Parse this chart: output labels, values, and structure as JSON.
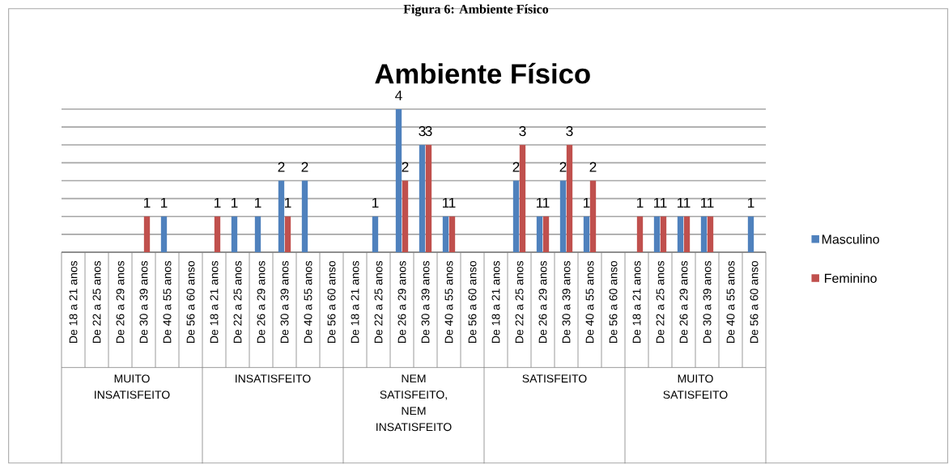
{
  "chart_data": {
    "type": "bar",
    "title": "Ambiente Físico",
    "annotations": [
      "Figura 6: Ambiente Físico",
      "MUITO INSATISFEITO",
      "INSATISFEITO",
      "NEM SATISFEITO, NEM INSATISFEITO",
      "SATISFEITO",
      "MUITO SATISFEITO"
    ],
    "categories": [
      "De 18 a 21 anos",
      "De 22 a 25 anos",
      "De 26 a 29 anos",
      "De 30 a 39 anos",
      "De 40 a 55 anos",
      "De 56 a 60 anso",
      "De 18 a 21 anos",
      "De 22 a 25 anos",
      "De 26 a 29 anos",
      "De 30 a 39 anos",
      "De 40 a 55 anos",
      "De 56 a 60 anso",
      "De 18 a 21 anos",
      "De 22 a 25 anos",
      "De 26 a 29 anos",
      "De 30 a 39 anos",
      "De 40 a 55 anos",
      "De 56 a 60 anso",
      "De 18 a 21 anos",
      "De 22 a 25 anos",
      "De 26 a 29 anos",
      "De 30 a 39 anos",
      "De 40 a 55 anos",
      "De 56 a 60 anso",
      "De 18 a 21 anos",
      "De 22 a 25 anos",
      "De 26 a 29 anos",
      "De 30 a 39 anos",
      "De 40 a 55 anos",
      "De 56 a 60 anso"
    ],
    "series": [
      {
        "name": "Masculino",
        "color": "#4f81bd",
        "values": [
          0,
          0,
          0,
          0,
          1,
          0,
          0,
          1,
          1,
          2,
          2,
          0,
          0,
          1,
          4,
          3,
          1,
          0,
          0,
          2,
          1,
          2,
          1,
          0,
          0,
          1,
          1,
          1,
          0,
          1
        ],
        "value_labels": [
          null,
          null,
          null,
          null,
          "1",
          null,
          null,
          "1",
          "1",
          "2",
          "2",
          null,
          null,
          "1",
          "4",
          "3",
          "1",
          null,
          null,
          "2",
          "1",
          "2",
          "1",
          null,
          null,
          "1",
          "1",
          "1",
          null,
          "1"
        ]
      },
      {
        "name": "Feminino",
        "color": "#c0504d",
        "values": [
          0,
          0,
          0,
          1,
          0,
          0,
          1,
          0,
          0,
          1,
          0,
          0,
          0,
          0,
          2,
          3,
          1,
          0,
          0,
          3,
          1,
          3,
          2,
          0,
          1,
          1,
          1,
          1,
          0,
          0
        ],
        "value_labels": [
          null,
          null,
          null,
          "1",
          null,
          null,
          "1",
          null,
          null,
          "1",
          null,
          null,
          null,
          null,
          "2",
          "3",
          "1",
          null,
          null,
          "3",
          "1",
          "3",
          "2",
          null,
          "1",
          "1",
          "1",
          "1",
          null,
          null
        ]
      }
    ],
    "ylim": [
      0,
      4
    ],
    "yticks": [
      {
        "value": 0,
        "label": null
      },
      {
        "value": 0.5,
        "label": null
      },
      {
        "value": 1,
        "label": null
      },
      {
        "value": 1.5,
        "label": null
      },
      {
        "value": 2,
        "label": null
      },
      {
        "value": 2.5,
        "label": null
      },
      {
        "value": 3,
        "label": null
      },
      {
        "value": 3.5,
        "label": null
      },
      {
        "value": 4,
        "label": null
      }
    ],
    "tick_labels": "x",
    "grid": "y",
    "legend": "right"
  }
}
